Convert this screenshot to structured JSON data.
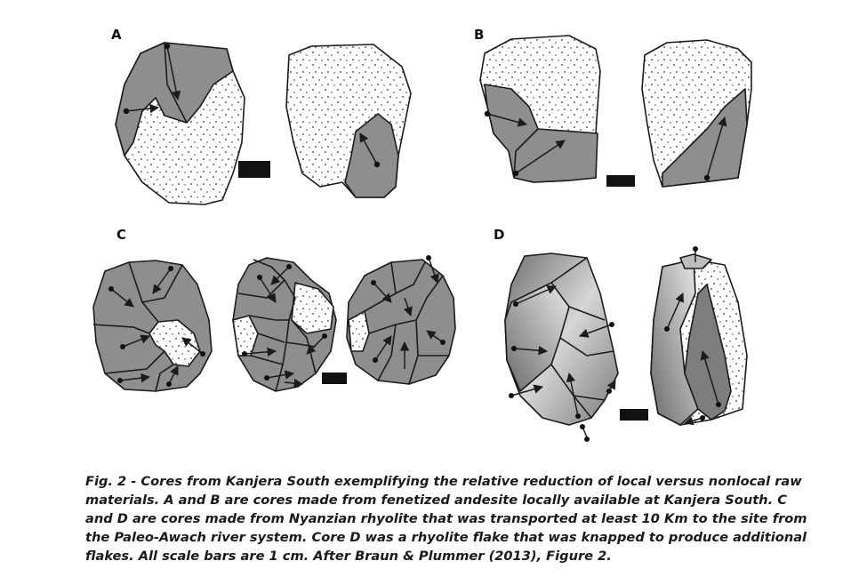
{
  "figure": {
    "panels": [
      {
        "label": "A"
      },
      {
        "label": "B"
      },
      {
        "label": "C"
      },
      {
        "label": "D"
      }
    ]
  },
  "caption": {
    "lines": [
      "Fig. 2 - Cores from Kanjera South exemplifying the relative reduction of local versus nonlocal raw",
      "materials. A and B are cores made from fenetized andesite locally available at Kanjera South.  C",
      "and D are cores made from Nyanzian rhyolite that was transported at least 10 Km to the site from",
      "the Paleo-Awach river system. Core D was a rhyolite flake that was knapped to produce additional",
      "flakes.  All scale bars are 1 cm. After Braun & Plummer (2013), Figure 2."
    ]
  },
  "colors": {
    "scar_gray": "#8e8e8e",
    "cortex": "#ffffff",
    "outline": "#1b1b1b"
  }
}
